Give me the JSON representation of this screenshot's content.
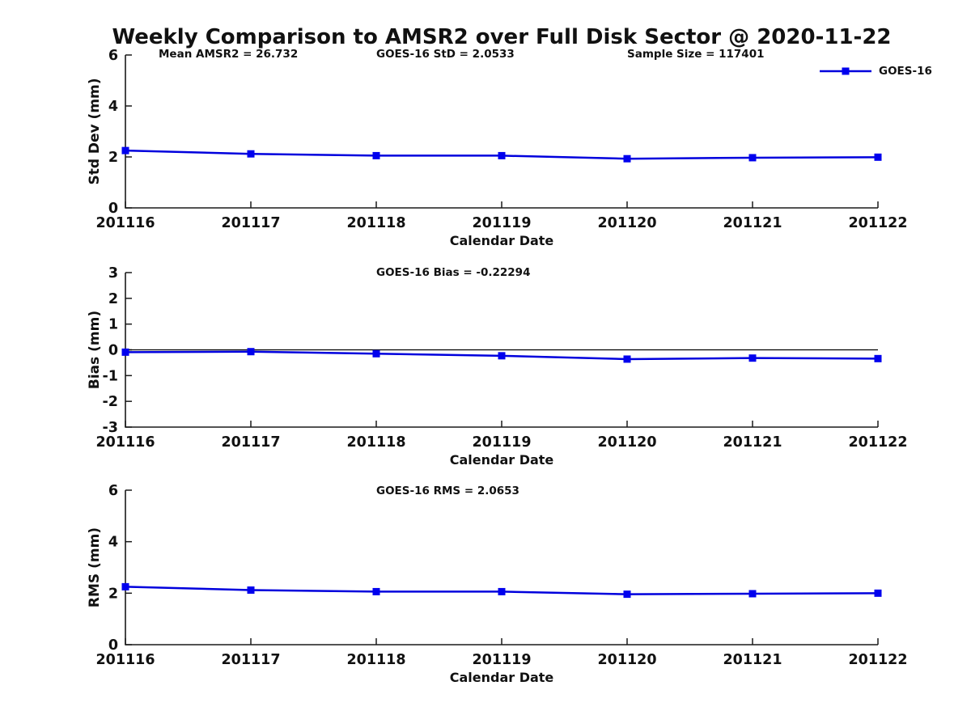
{
  "title": "Weekly Comparison to AMSR2 over Full Disk Sector @ 2020-11-22",
  "legend": {
    "label": "GOES-16"
  },
  "colors": {
    "series_line": "#0000dd",
    "marker": "#0000ee",
    "axis": "#1a1a1a",
    "text": "#111111",
    "zero_line": "#000000",
    "background": "#ffffff"
  },
  "x_axis": {
    "label": "Calendar Date",
    "categories": [
      "201116",
      "201117",
      "201118",
      "201119",
      "201120",
      "201121",
      "201122"
    ]
  },
  "chart_data": [
    {
      "id": "stddev",
      "type": "line",
      "title": "",
      "ylabel": "Std Dev (mm)",
      "xlabel": "Calendar Date",
      "ylim": [
        0,
        6
      ],
      "yticks": [
        0,
        2,
        4,
        6
      ],
      "grid": false,
      "zero_line": false,
      "legend_position": "top-right",
      "annotations": [
        "Mean AMSR2 = 26.732",
        "GOES-16 StD = 2.0533",
        "Sample Size = 117401"
      ],
      "categories": [
        "201116",
        "201117",
        "201118",
        "201119",
        "201120",
        "201121",
        "201122"
      ],
      "series": [
        {
          "name": "GOES-16",
          "values": [
            2.25,
            2.12,
            2.05,
            2.05,
            1.93,
            1.97,
            1.99
          ]
        }
      ]
    },
    {
      "id": "bias",
      "type": "line",
      "title": "",
      "ylabel": "Bias (mm)",
      "xlabel": "Calendar Date",
      "ylim": [
        -3,
        3
      ],
      "yticks": [
        -3,
        -2,
        -1,
        0,
        1,
        2,
        3
      ],
      "grid": false,
      "zero_line": true,
      "legend_position": "none",
      "annotations": [
        "GOES-16 Bias  = -0.22294"
      ],
      "categories": [
        "201116",
        "201117",
        "201118",
        "201119",
        "201120",
        "201121",
        "201122"
      ],
      "series": [
        {
          "name": "GOES-16",
          "values": [
            -0.09,
            -0.07,
            -0.15,
            -0.23,
            -0.36,
            -0.32,
            -0.34
          ]
        }
      ]
    },
    {
      "id": "rms",
      "type": "line",
      "title": "",
      "ylabel": "RMS (mm)",
      "xlabel": "Calendar Date",
      "ylim": [
        0,
        6
      ],
      "yticks": [
        0,
        2,
        4,
        6
      ],
      "grid": false,
      "zero_line": false,
      "legend_position": "none",
      "annotations": [
        "GOES-16 RMS = 2.0653"
      ],
      "categories": [
        "201116",
        "201117",
        "201118",
        "201119",
        "201120",
        "201121",
        "201122"
      ],
      "series": [
        {
          "name": "GOES-16",
          "values": [
            2.25,
            2.12,
            2.06,
            2.06,
            1.96,
            1.98,
            2.0
          ]
        }
      ]
    }
  ]
}
